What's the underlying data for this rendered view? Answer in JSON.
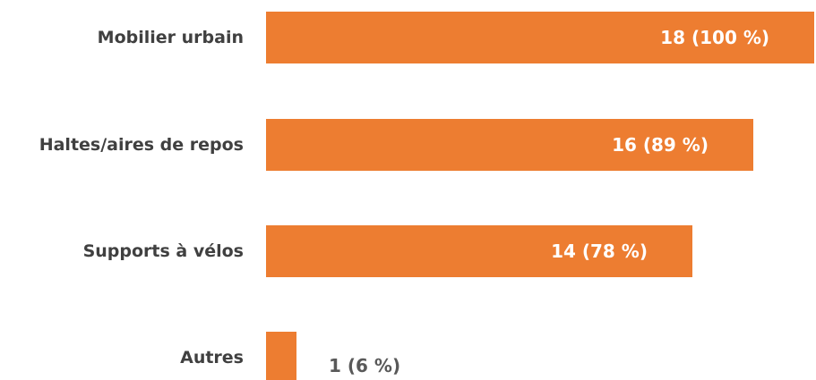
{
  "chart_data": {
    "type": "bar",
    "orientation": "horizontal",
    "categories": [
      "Mobilier urbain",
      "Haltes/aires de repos",
      "Supports à vélos",
      "Autres"
    ],
    "values": [
      18,
      16,
      14,
      1
    ],
    "data_labels": [
      "18 (100 %)",
      "16 (89 %)",
      "14 (78 %)",
      "1 (6 %)"
    ],
    "bar_color": "#ED7D31",
    "xlim": [
      0,
      18
    ],
    "grid": false,
    "legend": "none",
    "title": "",
    "xlabel": "",
    "ylabel": ""
  }
}
